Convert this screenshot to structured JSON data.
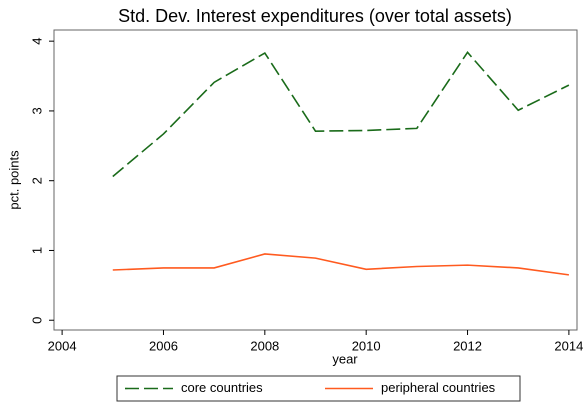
{
  "chart_data": {
    "type": "line",
    "title": "Std. Dev. Interest expenditures (over total assets)",
    "xlabel": "year",
    "ylabel": "pct. points",
    "x": [
      2005,
      2006,
      2007,
      2008,
      2009,
      2010,
      2011,
      2012,
      2013,
      2014
    ],
    "series": [
      {
        "name": "core countries",
        "color": "#1a6b1a",
        "dashed": true,
        "values": [
          2.06,
          2.67,
          3.41,
          3.83,
          2.71,
          2.72,
          2.75,
          3.84,
          3.01,
          3.37
        ]
      },
      {
        "name": "peripheral countries",
        "color": "#ff5a1f",
        "dashed": false,
        "values": [
          0.72,
          0.75,
          0.75,
          0.95,
          0.89,
          0.73,
          0.77,
          0.79,
          0.75,
          0.65
        ]
      }
    ],
    "xlim": [
      2003.84,
      2014.16
    ],
    "xticks": [
      2004,
      2006,
      2008,
      2010,
      2012,
      2014
    ],
    "ylim": [
      -0.14,
      4.16
    ],
    "yticks": [
      0,
      1,
      2,
      3,
      4
    ],
    "grid": false,
    "legend": "bottom"
  }
}
